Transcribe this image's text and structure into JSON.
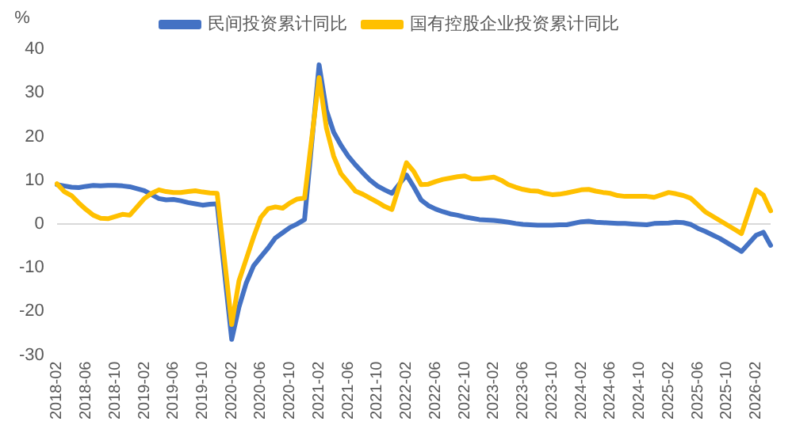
{
  "chart_data": {
    "type": "line",
    "ylabel": "%",
    "legend": "top",
    "marker": "none",
    "line_style": "solid",
    "ylim": [
      -30,
      40
    ],
    "yticks": [
      -30,
      -20,
      -10,
      0,
      10,
      20,
      30,
      40
    ],
    "categories": [
      "2018-02",
      null,
      null,
      null,
      "2018-06",
      null,
      null,
      null,
      "2018-10",
      null,
      null,
      null,
      "2019-02",
      null,
      null,
      null,
      "2019-06",
      null,
      null,
      null,
      "2019-10",
      null,
      null,
      null,
      "2020-02",
      null,
      null,
      null,
      "2020-06",
      null,
      null,
      null,
      "2020-10",
      null,
      null,
      null,
      "2021-02",
      null,
      null,
      null,
      "2021-06",
      null,
      null,
      null,
      "2021-10",
      null,
      null,
      null,
      "2022-02",
      null,
      null,
      null,
      "2022-06",
      null,
      null,
      null,
      "2022-10",
      null,
      null,
      null,
      "2023-02",
      null,
      null,
      null,
      "2023-06",
      null,
      null,
      null,
      "2023-10",
      null,
      null,
      null,
      "2024-02",
      null,
      null,
      null,
      "2024-06",
      null,
      null,
      null,
      "2024-10",
      null,
      null,
      null,
      "2025-02",
      null,
      null,
      null,
      "2025-06",
      null,
      null,
      null,
      "2025-10",
      null,
      null,
      null,
      "2026-02",
      null,
      null
    ],
    "series": [
      {
        "name": "民间投资累计同比",
        "color": "#4472c4",
        "values": [
          9.0,
          8.7,
          8.4,
          8.3,
          8.6,
          8.8,
          8.7,
          8.8,
          8.8,
          8.7,
          8.5,
          null,
          7.6,
          6.7,
          5.8,
          5.5,
          5.6,
          5.3,
          4.9,
          4.6,
          4.3,
          4.5,
          4.6,
          null,
          -26.4,
          -19,
          -13.5,
          -9.6,
          -7.5,
          -5.5,
          -3.2,
          -2,
          -0.8,
          0,
          1.0,
          null,
          36.4,
          26,
          21,
          18,
          15.5,
          13.5,
          11.7,
          10,
          8.7,
          7.8,
          7.0,
          null,
          11.2,
          8.5,
          5.5,
          4.2,
          3.4,
          2.8,
          2.3,
          2.0,
          1.6,
          1.3,
          1.0,
          null,
          0.8,
          0.6,
          0.4,
          0.1,
          -0.1,
          -0.2,
          -0.3,
          -0.3,
          -0.3,
          -0.2,
          -0.2,
          null,
          0.5,
          0.6,
          0.4,
          0.3,
          0.2,
          0.1,
          0.1,
          0.0,
          -0.1,
          -0.2,
          0.1,
          null,
          0.2,
          0.4,
          0.3,
          -0.1,
          -1.0,
          -1.7,
          -2.5,
          -3.3,
          -4.3,
          -5.3,
          -6.3,
          null,
          -2.6,
          -1.9,
          -4.9
        ]
      },
      {
        "name": "国有控股企业投资累计同比",
        "color": "#ffc000",
        "values": [
          9.2,
          7.4,
          6.5,
          4.8,
          3.3,
          2.0,
          1.3,
          1.2,
          1.7,
          2.2,
          2.0,
          null,
          5.8,
          7.0,
          7.8,
          7.4,
          7.2,
          7.2,
          7.4,
          7.6,
          7.3,
          7.1,
          7.0,
          null,
          -23,
          -13,
          -8,
          -3,
          1.5,
          3.5,
          3.9,
          3.6,
          4.8,
          5.7,
          5.9,
          null,
          33.5,
          22,
          15.5,
          11.5,
          9.5,
          7.5,
          6.8,
          5.9,
          5.0,
          4.0,
          3.3,
          null,
          14.0,
          12.0,
          9.0,
          9.1,
          9.7,
          10.2,
          10.5,
          10.8,
          11.0,
          10.3,
          10.3,
          null,
          10.7,
          10.0,
          9.0,
          8.4,
          7.9,
          7.6,
          7.5,
          7.0,
          6.7,
          6.8,
          7.1,
          null,
          7.8,
          7.9,
          7.5,
          7.2,
          7.0,
          6.5,
          6.3,
          6.3,
          6.3,
          6.3,
          6.1,
          null,
          7.2,
          6.9,
          6.5,
          5.9,
          4.4,
          2.8,
          1.8,
          0.8,
          -0.2,
          -1.2,
          -2.2,
          null,
          7.8,
          6.6,
          3.0
        ]
      }
    ]
  }
}
